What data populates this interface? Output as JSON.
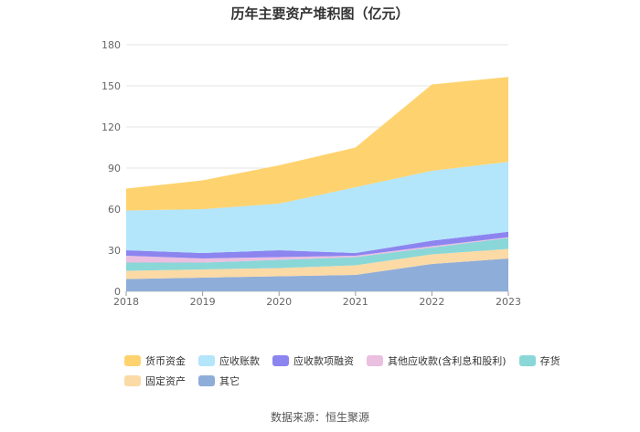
{
  "chart_data": {
    "type": "area",
    "stacked": true,
    "title": "历年主要资产堆积图（亿元）",
    "x": [
      "2018",
      "2019",
      "2020",
      "2021",
      "2022",
      "2023"
    ],
    "ylim": [
      0,
      180
    ],
    "yticks": [
      0,
      30,
      60,
      90,
      120,
      150,
      180
    ],
    "grid": true,
    "legend_position": "bottom",
    "series": [
      {
        "name": "其它",
        "color": "#8fadd9",
        "values": [
          9,
          10,
          11,
          12,
          20,
          24
        ]
      },
      {
        "name": "固定资产",
        "color": "#fbdaa6",
        "values": [
          6,
          6,
          6,
          7,
          7,
          7
        ]
      },
      {
        "name": "存货",
        "color": "#8ad7d8",
        "values": [
          6,
          5,
          6,
          6,
          5,
          8
        ]
      },
      {
        "name": "其他应收款(含利息和股利)",
        "color": "#ebbfe0",
        "values": [
          5,
          3,
          2,
          1,
          1,
          0.5
        ]
      },
      {
        "name": "应收款项融资",
        "color": "#8c85f0",
        "values": [
          4,
          4,
          5,
          2,
          4,
          4
        ]
      },
      {
        "name": "应收账款",
        "color": "#b3e5fb",
        "values": [
          29,
          32,
          34,
          48,
          51,
          51
        ]
      },
      {
        "name": "货币资金",
        "color": "#fed36f",
        "values": [
          16,
          21,
          28,
          29,
          63,
          62
        ]
      }
    ],
    "legend_order": [
      "货币资金",
      "应收账款",
      "应收款项融资",
      "其他应收款(含利息和股利)",
      "存货",
      "固定资产",
      "其它"
    ]
  },
  "source_text": "数据来源：恒生聚源"
}
